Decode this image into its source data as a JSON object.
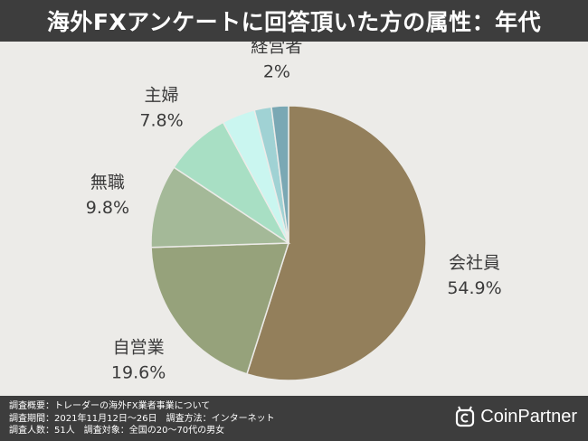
{
  "header": {
    "title": "海外FXアンケートに回答頂いた方の属性：年代"
  },
  "chart_data": {
    "type": "pie",
    "title": "海外FXアンケートに回答頂いた方の属性：年代",
    "slices": [
      {
        "label": "会社員",
        "value": 54.9,
        "value_label": "54.9%",
        "color": "#937f5b"
      },
      {
        "label": "自営業",
        "value": 19.6,
        "value_label": "19.6%",
        "color": "#96a27b"
      },
      {
        "label": "無職",
        "value": 9.8,
        "value_label": "9.8%",
        "color": "#a4b998"
      },
      {
        "label": "主婦",
        "value": 7.8,
        "value_label": "7.8%",
        "color": "#a8dfc4"
      },
      {
        "label": "",
        "value": 3.9,
        "value_label": "",
        "color": "#caf6f0"
      },
      {
        "label": "",
        "value": 2.0,
        "value_label": "",
        "color": "#a0d2d4"
      },
      {
        "label": "経営者",
        "value": 2.0,
        "value_label": "2%",
        "color": "#7aa8b4"
      }
    ]
  },
  "footer": {
    "lines": [
      "調査概要：トレーダーの海外FX業者事業について",
      "調査期間：2021年11月12日〜26日　調査方法：インターネット",
      "調査人数：51人　調査対象：全国の20〜70代の男女"
    ],
    "brand": "CoinPartner"
  }
}
